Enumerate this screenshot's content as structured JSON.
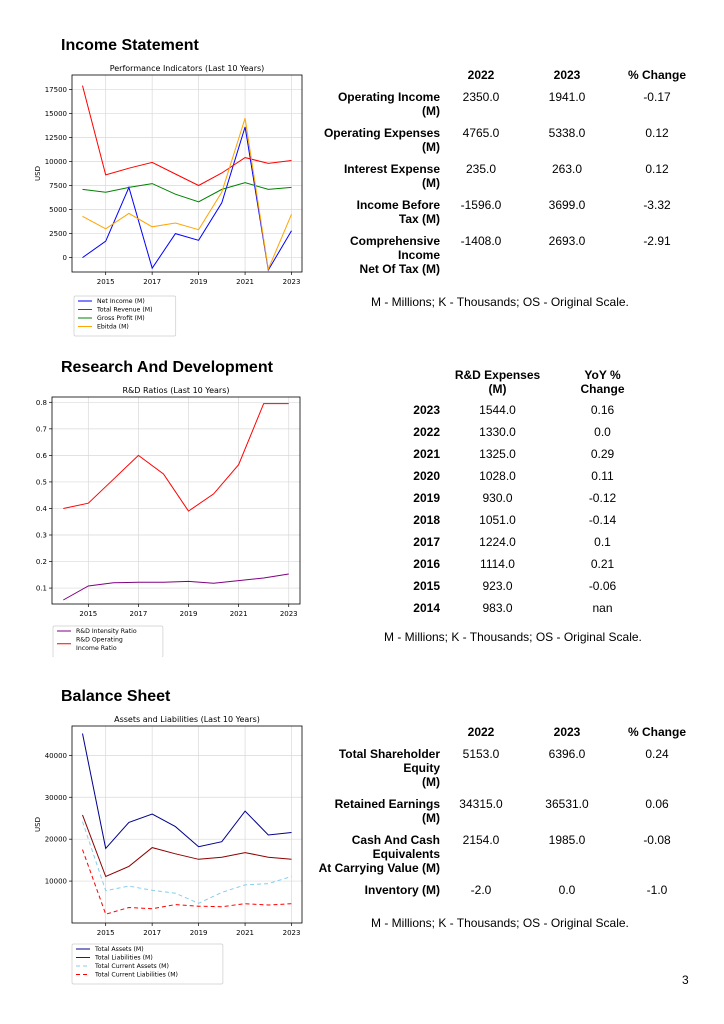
{
  "income": {
    "title": "Income Statement",
    "chart": {
      "type": "line",
      "title": "Performance Indicators (Last 10 Years)",
      "ylabel": "USD",
      "x": [
        2014,
        2015,
        2016,
        2017,
        2018,
        2019,
        2020,
        2021,
        2022,
        2023
      ],
      "xticks": [
        "2015",
        "2017",
        "2019",
        "2021",
        "2023"
      ],
      "yticks": [
        "0",
        "2500",
        "5000",
        "7500",
        "10000",
        "12500",
        "15000",
        "17500"
      ],
      "ylim": [
        -1500,
        19000
      ],
      "legend_position": "below",
      "series": [
        {
          "name": "Net Income (M)",
          "color": "#0000ff",
          "dash": "",
          "values": [
            0,
            1700,
            7300,
            -1100,
            2500,
            1800,
            5700,
            13600,
            -1300,
            2800
          ]
        },
        {
          "name": "Total Revenue (M)",
          "color": "#ff0000",
          "dash": "",
          "values": [
            17900,
            8600,
            9300,
            9900,
            8700,
            7500,
            8800,
            10400,
            9800,
            10100
          ]
        },
        {
          "name": "Gross Profit (M)",
          "color": "#008000",
          "dash": "",
          "values": [
            7100,
            6800,
            7300,
            7700,
            6600,
            5800,
            7100,
            7800,
            7100,
            7300
          ]
        },
        {
          "name": "Ebitda (M)",
          "color": "#ffa500",
          "dash": "",
          "values": [
            4300,
            3000,
            4600,
            3200,
            3600,
            2900,
            6800,
            14500,
            -1200,
            4500
          ]
        }
      ]
    },
    "table": {
      "headers": [
        "2022",
        "2023",
        "% Change"
      ],
      "rows": [
        {
          "label": [
            "Operating Income",
            "(M)"
          ],
          "v2022": "2350.0",
          "v2023": "1941.0",
          "change": "-0.17"
        },
        {
          "label": [
            "Operating Expenses",
            "(M)"
          ],
          "v2022": "4765.0",
          "v2023": "5338.0",
          "change": "0.12"
        },
        {
          "label": [
            "Interest Expense",
            "(M)"
          ],
          "v2022": "235.0",
          "v2023": "263.0",
          "change": "0.12"
        },
        {
          "label": [
            "Income Before",
            "Tax (M)"
          ],
          "v2022": "-1596.0",
          "v2023": "3699.0",
          "change": "-3.32"
        },
        {
          "label": [
            "Comprehensive",
            "Income",
            "Net Of Tax (M)"
          ],
          "v2022": "-1408.0",
          "v2023": "2693.0",
          "change": "-2.91"
        }
      ]
    },
    "note": "M - Millions; K - Thousands; OS - Original Scale."
  },
  "rnd": {
    "title": "Research And Development",
    "chart": {
      "type": "line",
      "title": "R&D Ratios (Last 10 Years)",
      "ylabel": "",
      "x": [
        2014,
        2015,
        2016,
        2017,
        2018,
        2019,
        2020,
        2021,
        2022,
        2023
      ],
      "xticks": [
        "2015",
        "2017",
        "2019",
        "2021",
        "2023"
      ],
      "yticks": [
        "0.1",
        "0.2",
        "0.3",
        "0.4",
        "0.5",
        "0.6",
        "0.7",
        "0.8"
      ],
      "ylim": [
        0.04,
        0.82
      ],
      "legend_position": "below",
      "series": [
        {
          "name": "R&D Intensity Ratio",
          "color": "#800080",
          "dash": "",
          "values": [
            0.055,
            0.108,
            0.12,
            0.122,
            0.122,
            0.125,
            0.118,
            0.128,
            0.138,
            0.153
          ]
        },
        {
          "name": "R&D Operating Income Ratio",
          "legend_lines": [
            "R&D Operating",
            "Income Ratio"
          ],
          "color": "#ff0000",
          "dash": "",
          "values": [
            0.4,
            0.42,
            0.51,
            0.6,
            0.53,
            0.39,
            0.455,
            0.565,
            0.795,
            0.795
          ]
        }
      ]
    },
    "table": {
      "headers": [
        [
          "R&D Expenses",
          "(M)"
        ],
        [
          "YoY %",
          "Change"
        ]
      ],
      "rows": [
        {
          "year": "2023",
          "expense": "1544.0",
          "yoy": "0.16"
        },
        {
          "year": "2022",
          "expense": "1330.0",
          "yoy": "0.0"
        },
        {
          "year": "2021",
          "expense": "1325.0",
          "yoy": "0.29"
        },
        {
          "year": "2020",
          "expense": "1028.0",
          "yoy": "0.11"
        },
        {
          "year": "2019",
          "expense": "930.0",
          "yoy": "-0.12"
        },
        {
          "year": "2018",
          "expense": "1051.0",
          "yoy": "-0.14"
        },
        {
          "year": "2017",
          "expense": "1224.0",
          "yoy": "0.1"
        },
        {
          "year": "2016",
          "expense": "1114.0",
          "yoy": "0.21"
        },
        {
          "year": "2015",
          "expense": "923.0",
          "yoy": "-0.06"
        },
        {
          "year": "2014",
          "expense": "983.0",
          "yoy": "nan"
        }
      ]
    },
    "note": "M - Millions; K - Thousands; OS - Original Scale."
  },
  "balance": {
    "title": "Balance Sheet",
    "chart": {
      "type": "line",
      "title": "Assets and Liabilities (Last 10 Years)",
      "ylabel": "USD",
      "x": [
        2014,
        2015,
        2016,
        2017,
        2018,
        2019,
        2020,
        2021,
        2022,
        2023
      ],
      "xticks": [
        "2015",
        "2017",
        "2019",
        "2021",
        "2023"
      ],
      "yticks": [
        "10000",
        "20000",
        "30000",
        "40000"
      ],
      "ylim": [
        0,
        47000
      ],
      "legend_position": "below",
      "series": [
        {
          "name": "Total Assets (M)",
          "color": "#00008b",
          "dash": "",
          "values": [
            45200,
            17800,
            24000,
            26000,
            23000,
            18200,
            19400,
            26700,
            21000,
            21600
          ]
        },
        {
          "name": "Total Liabilities (M)",
          "color": "#8b0000",
          "dash": "",
          "values": [
            25800,
            11100,
            13500,
            18000,
            16500,
            15200,
            15700,
            16800,
            15700,
            15200
          ]
        },
        {
          "name": "Total Current Assets (M)",
          "color": "#87ceeb",
          "dash": "4,3",
          "values": [
            24200,
            7700,
            8800,
            7800,
            7100,
            4700,
            7300,
            9100,
            9400,
            11100
          ]
        },
        {
          "name": "Total Current Liabilities (M)",
          "color": "#ff0000",
          "dash": "4,3",
          "values": [
            17500,
            2100,
            3700,
            3400,
            4400,
            4000,
            3900,
            4600,
            4300,
            4600
          ]
        }
      ]
    },
    "table": {
      "headers": [
        "2022",
        "2023",
        "% Change"
      ],
      "rows": [
        {
          "label": [
            "Total Shareholder",
            "Equity",
            "(M)"
          ],
          "v2022": "5153.0",
          "v2023": "6396.0",
          "change": "0.24"
        },
        {
          "label": [
            "Retained Earnings",
            "(M)"
          ],
          "v2022": "34315.0",
          "v2023": "36531.0",
          "change": "0.06"
        },
        {
          "label": [
            "Cash And Cash",
            "Equivalents",
            "At Carrying Value (M)"
          ],
          "v2022": "2154.0",
          "v2023": "1985.0",
          "change": "-0.08"
        },
        {
          "label": [
            "Inventory (M)"
          ],
          "v2022": "-2.0",
          "v2023": "0.0",
          "change": "-1.0"
        }
      ]
    },
    "note": "M - Millions; K - Thousands; OS - Original Scale."
  },
  "page_number": "3"
}
